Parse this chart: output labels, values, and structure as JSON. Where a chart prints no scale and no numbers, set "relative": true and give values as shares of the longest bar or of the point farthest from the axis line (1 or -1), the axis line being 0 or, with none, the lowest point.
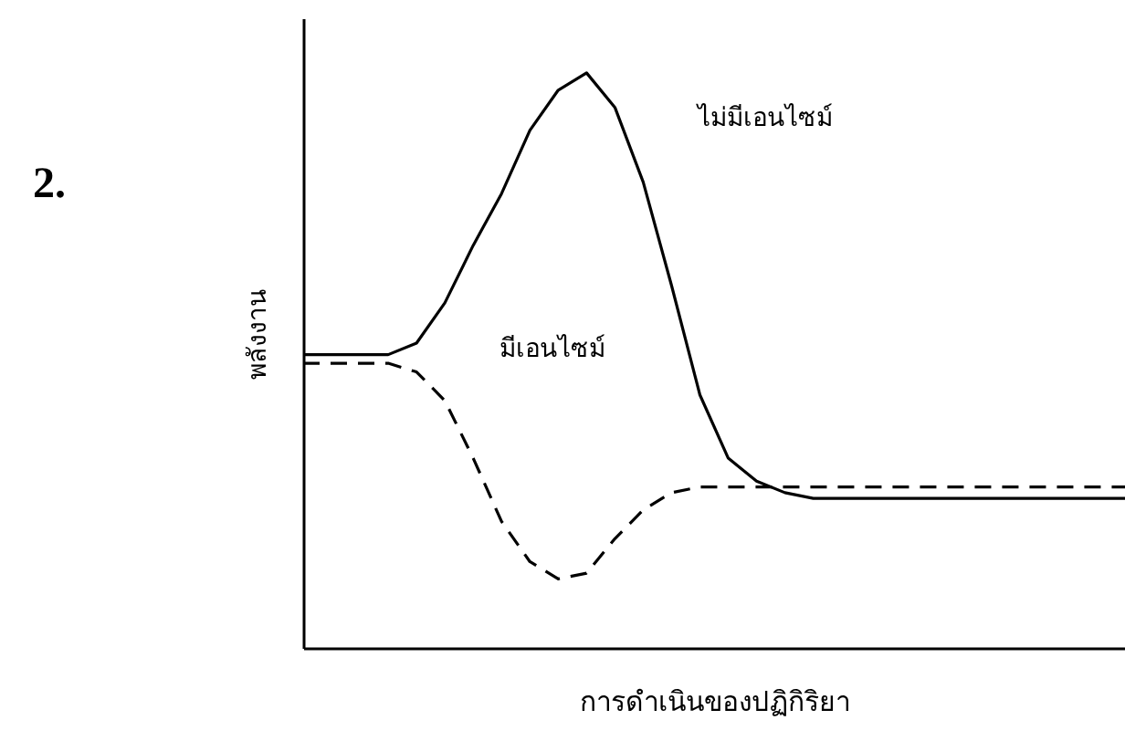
{
  "chart_data": {
    "type": "line",
    "xlabel": "การดำเนินของปฏิกิริยา",
    "ylabel": "พลังงาน",
    "annotations": [
      "2."
    ],
    "relative": true,
    "legend": false,
    "categories": [
      null,
      null,
      null,
      null,
      null,
      null,
      null,
      null,
      null,
      null,
      null,
      null,
      null,
      null,
      null,
      null,
      null,
      null,
      null,
      null,
      null,
      null,
      null,
      null,
      null,
      null,
      null,
      null,
      null,
      null
    ],
    "series": [
      {
        "name": "ไม่มีเอนไซม์",
        "color": "#000000",
        "line_style": "solid",
        "values": [
          0.51,
          0.51,
          0.51,
          0.51,
          0.53,
          0.6,
          0.7,
          0.79,
          0.9,
          0.97,
          1,
          0.94,
          0.81,
          0.63,
          0.44,
          0.33,
          0.29,
          0.27,
          0.26,
          0.26,
          0.26,
          0.26,
          0.26,
          0.26,
          0.26,
          0.26,
          0.26,
          0.26,
          0.26,
          0.26
        ]
      },
      {
        "name": "มีเอนไซม์",
        "color": "#000000",
        "line_style": "dashed",
        "values": [
          0.495,
          0.495,
          0.495,
          0.495,
          0.48,
          0.43,
          0.33,
          0.22,
          0.15,
          0.12,
          0.13,
          0.19,
          0.24,
          0.27,
          0.28,
          0.28,
          0.28,
          0.28,
          0.28,
          0.28,
          0.28,
          0.28,
          0.28,
          0.28,
          0.28,
          0.28,
          0.28,
          0.28,
          0.28,
          0.28
        ]
      }
    ]
  }
}
